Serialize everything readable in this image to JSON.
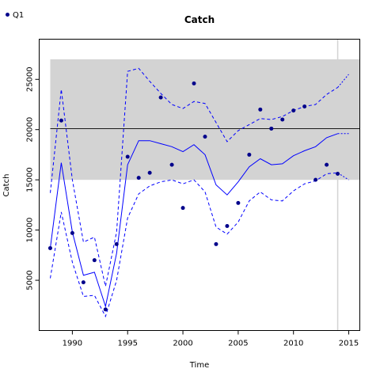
{
  "chart_data": {
    "type": "line",
    "title": "Catch",
    "xlabel": "Time",
    "ylabel": "Catch",
    "xlim": [
      1987,
      2016
    ],
    "ylim": [
      0,
      29000
    ],
    "xticks": [
      1990,
      1995,
      2000,
      2005,
      2010,
      2015
    ],
    "yticks": [
      5000,
      10000,
      15000,
      20000,
      25000
    ],
    "legend": {
      "entries": [
        "Q1"
      ],
      "placement": "top-left"
    },
    "colors": {
      "series": "#0000ff",
      "points": "#00008b",
      "band": "#d3d3d3",
      "hline": "#000000",
      "vline": "#d3d3d3"
    },
    "reference_band": {
      "ymin": 15000,
      "ymax": 27000,
      "xmin": 1988,
      "xmax": 2016
    },
    "reference_hline": 20100,
    "reference_vline": 2014,
    "observed": {
      "name": "Q1",
      "x": [
        1988,
        1989,
        1990,
        1991,
        1992,
        1993,
        1994,
        1995,
        1996,
        1997,
        1998,
        1999,
        2000,
        2001,
        2002,
        2003,
        2004,
        2005,
        2006,
        2007,
        2008,
        2009,
        2010,
        2011,
        2012,
        2013,
        2014
      ],
      "y": [
        8200,
        20900,
        9700,
        4800,
        7000,
        2100,
        8600,
        17300,
        15200,
        15700,
        23200,
        16500,
        12200,
        24600,
        19300,
        8600,
        10400,
        12700,
        17500,
        22000,
        20100,
        21000,
        21900,
        22300,
        15000,
        16500,
        15600
      ]
    },
    "fitted": {
      "x": [
        1988,
        1989,
        1990,
        1991,
        1992,
        1993,
        1994,
        1995,
        1996,
        1997,
        1998,
        1999,
        2000,
        2001,
        2002,
        2003,
        2004,
        2005,
        2006,
        2007,
        2008,
        2009,
        2010,
        2011,
        2012,
        2013,
        2014
      ],
      "y": [
        8200,
        16700,
        9800,
        5500,
        5800,
        2400,
        7700,
        16500,
        18900,
        18900,
        18600,
        18300,
        17800,
        18500,
        17500,
        14500,
        13500,
        14800,
        16300,
        17100,
        16500,
        16600,
        17400,
        17900,
        18300,
        19200,
        19600
      ]
    },
    "upper": {
      "x": [
        1988,
        1989,
        1990,
        1991,
        1992,
        1993,
        1994,
        1995,
        1996,
        1997,
        1998,
        1999,
        2000,
        2001,
        2002,
        2003,
        2004,
        2005,
        2006,
        2007,
        2008,
        2009,
        2010,
        2011,
        2012,
        2013,
        2014
      ],
      "y": [
        13700,
        24000,
        15000,
        8800,
        9300,
        4400,
        9800,
        25800,
        26100,
        24800,
        23600,
        22500,
        22100,
        22800,
        22600,
        20700,
        18800,
        19900,
        20500,
        21100,
        21000,
        21300,
        21900,
        22300,
        22500,
        23500,
        24200
      ]
    },
    "lower": {
      "x": [
        1988,
        1989,
        1990,
        1991,
        1992,
        1993,
        1994,
        1995,
        1996,
        1997,
        1998,
        1999,
        2000,
        2001,
        2002,
        2003,
        2004,
        2005,
        2006,
        2007,
        2008,
        2009,
        2010,
        2011,
        2012,
        2013,
        2014
      ],
      "y": [
        5200,
        11800,
        6800,
        3400,
        3500,
        1400,
        5000,
        11200,
        13600,
        14400,
        14800,
        15000,
        14600,
        15000,
        13800,
        10300,
        9600,
        10800,
        12900,
        13800,
        13000,
        12900,
        13900,
        14600,
        14900,
        15600,
        15700
      ]
    },
    "projection_upper": {
      "x": [
        2014,
        2015
      ],
      "y": [
        24200,
        25500
      ]
    },
    "projection_fitted": {
      "x": [
        2014,
        2015
      ],
      "y": [
        19600,
        19600
      ]
    },
    "projection_lower": {
      "x": [
        2014,
        2015
      ],
      "y": [
        15700,
        15000
      ]
    }
  }
}
